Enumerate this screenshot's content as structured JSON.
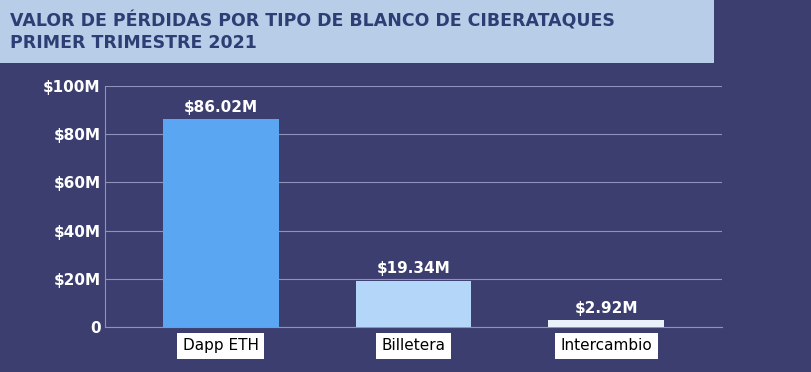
{
  "chart_data": {
    "type": "bar",
    "title": "VALOR DE PÉRDIDAS POR TIPO DE BLANCO DE CIBERATAQUES\nPRIMER TRIMESTRE 2021",
    "categories": [
      "Dapp ETH",
      "Billetera",
      "Intercambio"
    ],
    "values": [
      86.02,
      19.34,
      2.92
    ],
    "value_labels": [
      "$86.02M",
      "$19.34M",
      "$2.92M"
    ],
    "colors": [
      "#5aa6f2",
      "#b4d6f8",
      "#e9f1fb"
    ],
    "data_labels": true,
    "ylim": [
      0,
      100
    ],
    "yticks": [
      0,
      {
        "value": 20,
        "label": "$20M"
      },
      {
        "value": 40,
        "label": "$40M"
      },
      {
        "value": 60,
        "label": "$60M"
      },
      {
        "value": 80,
        "label": "$80M"
      },
      {
        "value": 100,
        "label": "$100M"
      }
    ],
    "grid": true
  }
}
